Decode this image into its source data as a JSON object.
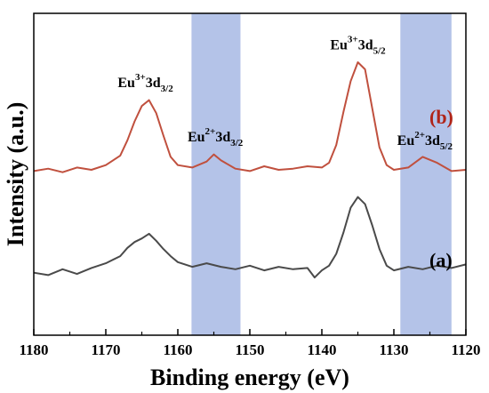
{
  "chart_data": {
    "type": "line",
    "xlabel": "Binding energy (eV)",
    "ylabel": "Intensity (a.u.)",
    "xlim": [
      1180,
      1120
    ],
    "x_reversed": true,
    "xticks": [
      1180,
      1170,
      1160,
      1150,
      1140,
      1130,
      1120
    ],
    "y_ticks_shown": false,
    "grid": false,
    "legend": "none",
    "shaded_bands": [
      {
        "from": 1158.1,
        "to": 1151.3,
        "color": "#b4c3e8"
      },
      {
        "from": 1129.1,
        "to": 1122.0,
        "color": "#b4c3e8"
      }
    ],
    "series": [
      {
        "label": "(b)",
        "color": "#c0503e",
        "label_color": "#b02418",
        "x": [
          1180,
          1178,
          1176,
          1174,
          1172,
          1170,
          1168,
          1167,
          1166,
          1165,
          1164,
          1163,
          1162,
          1161,
          1160,
          1158,
          1156,
          1155,
          1154,
          1152,
          1150,
          1148,
          1146,
          1144,
          1142,
          1140,
          1139,
          1138,
          1137,
          1136,
          1135,
          1134,
          1133,
          1132,
          1131,
          1130,
          1128,
          1126,
          1124,
          1122,
          1120
        ],
        "values": [
          0.08,
          0.1,
          0.07,
          0.11,
          0.09,
          0.13,
          0.21,
          0.34,
          0.5,
          0.63,
          0.68,
          0.57,
          0.38,
          0.2,
          0.13,
          0.11,
          0.16,
          0.22,
          0.17,
          0.1,
          0.08,
          0.12,
          0.09,
          0.1,
          0.12,
          0.11,
          0.15,
          0.3,
          0.58,
          0.84,
          1.0,
          0.94,
          0.61,
          0.28,
          0.13,
          0.09,
          0.11,
          0.2,
          0.15,
          0.08,
          0.09
        ]
      },
      {
        "label": "(a)",
        "color": "#4a4a4a",
        "label_color": "#000000",
        "x": [
          1180,
          1178,
          1176,
          1174,
          1172,
          1170,
          1168,
          1167,
          1166,
          1165,
          1164,
          1163,
          1162,
          1161,
          1160,
          1158,
          1156,
          1154,
          1152,
          1150,
          1148,
          1146,
          1144,
          1142,
          1141,
          1140,
          1139,
          1138,
          1137,
          1136,
          1135,
          1134,
          1133,
          1132,
          1131,
          1130,
          1128,
          1126,
          1124,
          1122,
          1120
        ],
        "values": [
          -0.78,
          -0.8,
          -0.75,
          -0.79,
          -0.74,
          -0.7,
          -0.64,
          -0.57,
          -0.52,
          -0.49,
          -0.45,
          -0.51,
          -0.58,
          -0.64,
          -0.69,
          -0.73,
          -0.7,
          -0.73,
          -0.75,
          -0.72,
          -0.76,
          -0.73,
          -0.75,
          -0.74,
          -0.82,
          -0.76,
          -0.72,
          -0.62,
          -0.44,
          -0.23,
          -0.14,
          -0.2,
          -0.38,
          -0.58,
          -0.72,
          -0.76,
          -0.73,
          -0.75,
          -0.72,
          -0.74,
          -0.71
        ]
      }
    ],
    "annotations": [
      {
        "base": "Eu",
        "sup": "3+",
        "main": "3d",
        "sub": "3/2",
        "x": 1164.5,
        "y": 0.79
      },
      {
        "base": "Eu",
        "sup": "2+",
        "main": "3d",
        "sub": "3/2",
        "x": 1154.8,
        "y": 0.33
      },
      {
        "base": "Eu",
        "sup": "3+",
        "main": "3d",
        "sub": "5/2",
        "x": 1135.0,
        "y": 1.11
      },
      {
        "base": "Eu",
        "sup": "2+",
        "main": "3d",
        "sub": "5/2",
        "x": 1125.7,
        "y": 0.3
      }
    ]
  }
}
